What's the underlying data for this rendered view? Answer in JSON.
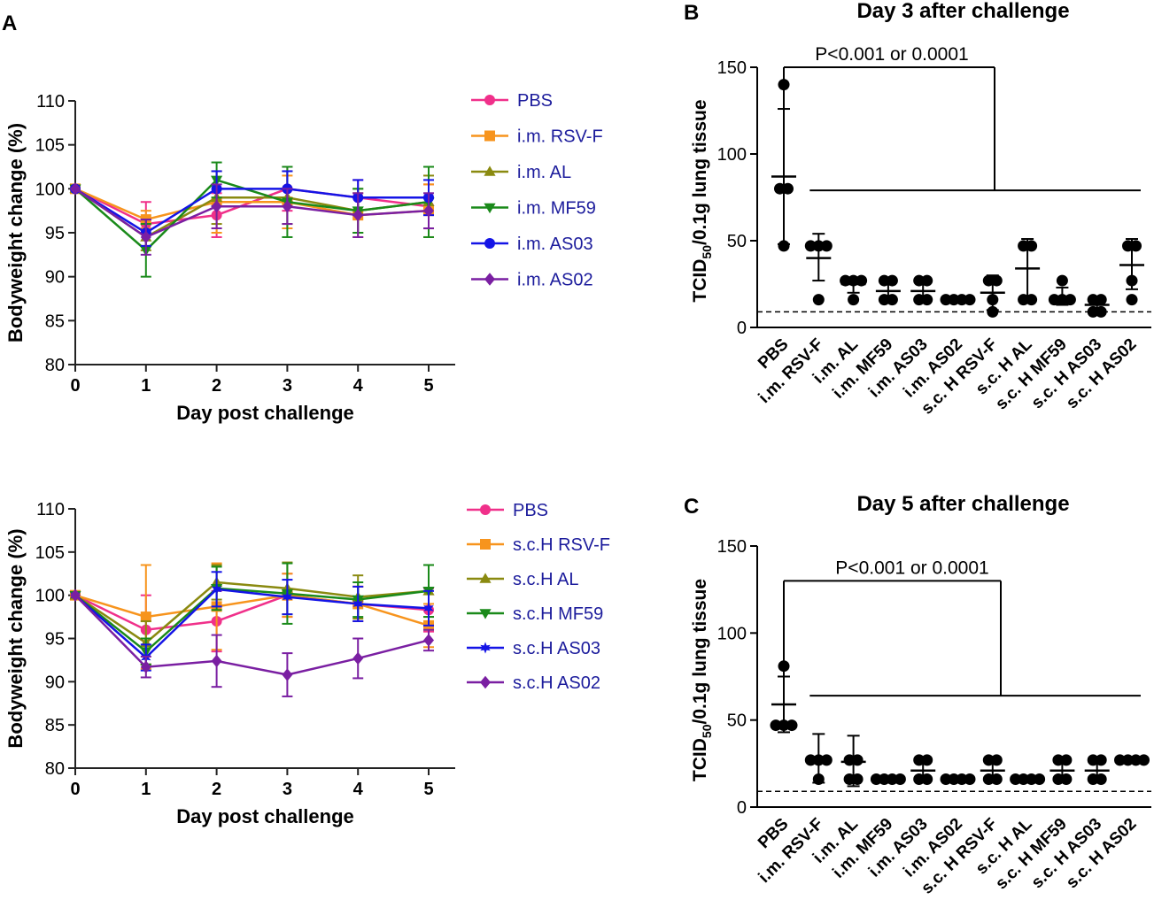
{
  "panel_labels": {
    "a": "A",
    "b": "B",
    "c": "C"
  },
  "colors": {
    "PBS": "#f0308a",
    "RSV-F": "#f7941d",
    "AL": "#8a8a10",
    "MF59": "#1a8a1a",
    "AS03": "#1414e6",
    "AS02": "#7a1fa2",
    "legend_text": "#1c1c9c",
    "ink": "#000000"
  },
  "chart_data": [
    {
      "id": "A-top",
      "type": "line",
      "title": "",
      "xlabel": "Day post challenge",
      "ylabel": "Bodyweight change (%)",
      "x": [
        0,
        1,
        2,
        3,
        4,
        5
      ],
      "xlim": [
        0,
        5
      ],
      "ylim": [
        80,
        110
      ],
      "yticks": [
        80,
        85,
        90,
        95,
        100,
        105,
        110
      ],
      "legend_position": "right",
      "series": [
        {
          "name": "PBS",
          "colorKey": "PBS",
          "marker": "circle",
          "values": [
            100,
            96,
            97,
            100,
            99,
            98
          ],
          "errors": [
            0,
            2.5,
            2.5,
            2.5,
            2,
            2.5
          ]
        },
        {
          "name": "i.m. RSV-F",
          "colorKey": "RSV-F",
          "marker": "square",
          "values": [
            100,
            96.5,
            98.5,
            98.5,
            97,
            97.5
          ],
          "errors": [
            0,
            1,
            3.5,
            3,
            2.5,
            3
          ]
        },
        {
          "name": "i.m. AL",
          "colorKey": "AL",
          "marker": "triangle-up",
          "values": [
            100,
            94.5,
            99,
            99,
            97.5,
            98.5
          ],
          "errors": [
            0,
            1.5,
            3,
            3,
            2.5,
            3
          ]
        },
        {
          "name": "i.m. MF59",
          "colorKey": "MF59",
          "marker": "triangle-down",
          "values": [
            100,
            93,
            101,
            98.5,
            97.5,
            98.5
          ],
          "errors": [
            0,
            3,
            2,
            4,
            2.5,
            4
          ]
        },
        {
          "name": "i.m. AS03",
          "colorKey": "AS03",
          "marker": "circle",
          "values": [
            100,
            95,
            100,
            100,
            99,
            99
          ],
          "errors": [
            0,
            1.5,
            2,
            2,
            2,
            2
          ]
        },
        {
          "name": "i.m. AS02",
          "colorKey": "AS02",
          "marker": "diamond",
          "values": [
            100,
            94.5,
            98,
            98,
            97,
            97.5
          ],
          "errors": [
            0,
            2,
            2.5,
            2,
            2.5,
            2
          ]
        }
      ]
    },
    {
      "id": "A-bottom",
      "type": "line",
      "title": "",
      "xlabel": "Day post challenge",
      "ylabel": "Bodyweight change (%)",
      "x": [
        0,
        1,
        2,
        3,
        4,
        5
      ],
      "xlim": [
        0,
        5
      ],
      "ylim": [
        80,
        110
      ],
      "yticks": [
        80,
        85,
        90,
        95,
        100,
        105,
        110
      ],
      "legend_position": "right",
      "series": [
        {
          "name": "PBS",
          "colorKey": "PBS",
          "marker": "circle",
          "values": [
            100,
            96,
            97,
            100,
            99,
            98.3
          ],
          "errors": [
            0,
            4,
            3.5,
            2.5,
            2,
            2.5
          ]
        },
        {
          "name": "s.c.H RSV-F",
          "colorKey": "RSV-F",
          "marker": "square",
          "values": [
            100,
            97.5,
            98.7,
            100,
            99,
            96.5
          ],
          "errors": [
            0,
            6,
            5,
            2.5,
            2,
            2.5
          ]
        },
        {
          "name": "s.c.H AL",
          "colorKey": "AL",
          "marker": "triangle-up",
          "values": [
            100,
            94.5,
            101.5,
            100.8,
            99.8,
            100.5
          ],
          "errors": [
            0,
            2.5,
            2,
            3,
            2.5,
            3
          ]
        },
        {
          "name": "s.c.H MF59",
          "colorKey": "MF59",
          "marker": "triangle-down",
          "values": [
            100,
            93.5,
            100.8,
            100.2,
            99.5,
            100.5
          ],
          "errors": [
            0,
            1.5,
            2.5,
            3.5,
            2,
            3
          ]
        },
        {
          "name": "s.c.H AS03",
          "colorKey": "AS03",
          "marker": "star",
          "values": [
            100,
            92.8,
            100.7,
            99.8,
            99,
            98.5
          ],
          "errors": [
            0,
            1.5,
            2,
            2,
            2,
            2
          ]
        },
        {
          "name": "s.c.H AS02",
          "colorKey": "AS02",
          "marker": "diamond",
          "values": [
            100,
            91.7,
            92.4,
            90.8,
            92.7,
            94.8
          ],
          "errors": [
            0,
            1.2,
            3,
            2.5,
            2.3,
            1.2
          ]
        }
      ]
    },
    {
      "id": "B",
      "type": "scatter",
      "title": "Day 3 after challenge",
      "xlabel": "",
      "ylabel": "TCID50/0.1g lung tissue",
      "ylabel_parts": {
        "prefix": "TCID",
        "sub": "50",
        "suffix": "/0.1g lung tissue"
      },
      "ylim": [
        0,
        150
      ],
      "yticks": [
        0,
        50,
        100,
        150
      ],
      "detection_limit": 9,
      "significance_text": "P<0.001 or 0.0001",
      "categories": [
        "PBS",
        "i.m. RSV-F",
        "i.m. AL",
        "i.m. MF59",
        "i.m. AS03",
        "i.m. AS02",
        "s.c. H RSV-F",
        "s.c. H AL",
        "s.c. H MF59",
        "s.c. H AS03",
        "s.c. H AS02"
      ],
      "groups": [
        {
          "points": [
            140,
            80,
            80,
            47
          ],
          "mean": 87,
          "sd_low": 48,
          "sd_high": 126
        },
        {
          "points": [
            47,
            47,
            47,
            16
          ],
          "mean": 40,
          "sd_low": 27,
          "sd_high": 54
        },
        {
          "points": [
            27,
            27,
            27,
            16
          ],
          "mean": 25,
          "sd_low": 20,
          "sd_high": 28
        },
        {
          "points": [
            27,
            27,
            16,
            16
          ],
          "mean": 21,
          "sd_low": 15,
          "sd_high": 28
        },
        {
          "points": [
            27,
            27,
            16,
            16
          ],
          "mean": 21,
          "sd_low": 15,
          "sd_high": 28
        },
        {
          "points": [
            16,
            16,
            16,
            16
          ],
          "mean": 16,
          "sd_low": 16,
          "sd_high": 16
        },
        {
          "points": [
            27,
            27,
            16,
            9
          ],
          "mean": 20,
          "sd_low": 10,
          "sd_high": 30
        },
        {
          "points": [
            47,
            47,
            16,
            16
          ],
          "mean": 34,
          "sd_low": 17,
          "sd_high": 51
        },
        {
          "points": [
            27,
            16,
            16,
            16
          ],
          "mean": 17,
          "sd_low": 13,
          "sd_high": 23
        },
        {
          "points": [
            16,
            16,
            9,
            9
          ],
          "mean": 13,
          "sd_low": 10,
          "sd_high": 16
        },
        {
          "points": [
            47,
            47,
            27,
            16
          ],
          "mean": 36,
          "sd_low": 22,
          "sd_high": 51
        }
      ]
    },
    {
      "id": "C",
      "type": "scatter",
      "title": "Day 5 after challenge",
      "xlabel": "",
      "ylabel": "TCID50/0.1g lung tissue",
      "ylabel_parts": {
        "prefix": "TCID",
        "sub": "50",
        "suffix": "/0.1g lung tissue"
      },
      "ylim": [
        0,
        150
      ],
      "yticks": [
        0,
        50,
        100,
        150
      ],
      "detection_limit": 9,
      "significance_text": "P<0.001 or 0.0001",
      "categories": [
        "PBS",
        "i.m. RSV-F",
        "i.m. AL",
        "i.m. MF59",
        "i.m. AS03",
        "i.m. AS02",
        "s.c. H RSV-F",
        "s.c. H AL",
        "s.c. H MF59",
        "s.c. H AS03",
        "s.c. H AS02"
      ],
      "groups": [
        {
          "points": [
            81,
            47,
            47,
            47
          ],
          "mean": 59,
          "sd_low": 43,
          "sd_high": 75
        },
        {
          "points": [
            27,
            27,
            27,
            16
          ],
          "mean": 28,
          "sd_low": 14,
          "sd_high": 42
        },
        {
          "points": [
            27,
            27,
            16,
            16
          ],
          "mean": 26,
          "sd_low": 12,
          "sd_high": 41
        },
        {
          "points": [
            16,
            16,
            16,
            16
          ],
          "mean": 16,
          "sd_low": 16,
          "sd_high": 16
        },
        {
          "points": [
            27,
            27,
            16,
            16
          ],
          "mean": 21,
          "sd_low": 15,
          "sd_high": 27
        },
        {
          "points": [
            16,
            16,
            16,
            16
          ],
          "mean": 16,
          "sd_low": 16,
          "sd_high": 16
        },
        {
          "points": [
            27,
            27,
            16,
            16
          ],
          "mean": 21,
          "sd_low": 15,
          "sd_high": 27
        },
        {
          "points": [
            16,
            16,
            16,
            16
          ],
          "mean": 16,
          "sd_low": 16,
          "sd_high": 16
        },
        {
          "points": [
            27,
            27,
            16,
            16
          ],
          "mean": 21,
          "sd_low": 15,
          "sd_high": 27
        },
        {
          "points": [
            27,
            27,
            16,
            16
          ],
          "mean": 21,
          "sd_low": 15,
          "sd_high": 27
        },
        {
          "points": [
            27,
            27,
            27,
            27
          ],
          "mean": 27,
          "sd_low": 27,
          "sd_high": 27
        }
      ]
    }
  ]
}
